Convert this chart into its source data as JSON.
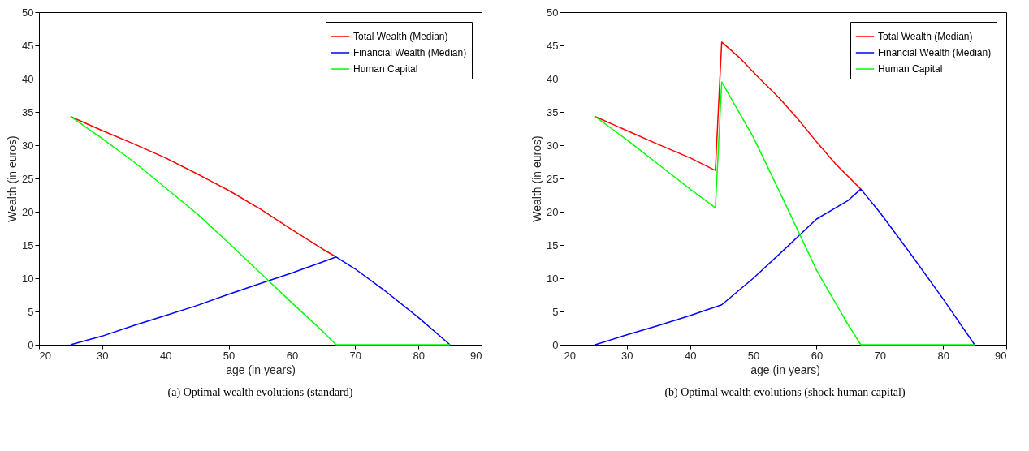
{
  "chart_data": [
    {
      "type": "line",
      "xlabel": "age (in years)",
      "ylabel": "Wealth (in euros)",
      "xlim": [
        20,
        90
      ],
      "xticks": [
        20,
        30,
        40,
        50,
        60,
        70,
        80,
        90
      ],
      "ylim": [
        0,
        50
      ],
      "yticks": [
        0,
        5,
        10,
        15,
        20,
        25,
        30,
        35,
        40,
        45,
        50
      ],
      "grid": false,
      "legend": "top right",
      "annotations": [
        "(a) Optimal wealth evolutions (standard)"
      ],
      "series": [
        {
          "name": "Total Wealth (Median)",
          "color": "#ff0000",
          "x": [
            25,
            30,
            35,
            40,
            45,
            50,
            55,
            60,
            65,
            67
          ],
          "values": [
            34.3,
            32.2,
            30.2,
            28.1,
            25.7,
            23.2,
            20.4,
            17.3,
            14.3,
            13.2
          ]
        },
        {
          "name": "Financial Wealth (Median)",
          "color": "#0000ff",
          "x": [
            25,
            30,
            35,
            40,
            45,
            50,
            55,
            60,
            65,
            67,
            70,
            75,
            80,
            85
          ],
          "values": [
            0,
            1.3,
            2.9,
            4.4,
            5.9,
            7.6,
            9.2,
            10.8,
            12.5,
            13.2,
            11.4,
            7.9,
            4.1,
            0
          ]
        },
        {
          "name": "Human Capital",
          "color": "#00ff00",
          "x": [
            25,
            30,
            35,
            40,
            45,
            50,
            55,
            60,
            65,
            67,
            85
          ],
          "values": [
            34.3,
            31.0,
            27.5,
            23.6,
            19.7,
            15.3,
            10.8,
            6.3,
            1.9,
            0,
            0
          ]
        }
      ]
    },
    {
      "type": "line",
      "xlabel": "age (in years)",
      "ylabel": "Wealth (in euros)",
      "xlim": [
        20,
        90
      ],
      "xticks": [
        20,
        30,
        40,
        50,
        60,
        70,
        80,
        90
      ],
      "ylim": [
        0,
        50
      ],
      "yticks": [
        0,
        5,
        10,
        15,
        20,
        25,
        30,
        35,
        40,
        45,
        50
      ],
      "grid": false,
      "legend": "top right",
      "annotations": [
        "(b) Optimal wealth evolutions (shock human capital)"
      ],
      "series": [
        {
          "name": "Total Wealth (Median)",
          "color": "#ff0000",
          "x": [
            25,
            30,
            35,
            40,
            44,
            45,
            48,
            51,
            54,
            57,
            60,
            63,
            67
          ],
          "values": [
            34.3,
            32.2,
            30.1,
            28.1,
            26.2,
            45.5,
            43.0,
            40.0,
            37.2,
            34.0,
            30.5,
            27.2,
            23.4
          ]
        },
        {
          "name": "Financial Wealth (Median)",
          "color": "#0000ff",
          "x": [
            25,
            30,
            35,
            40,
            45,
            50,
            55,
            60,
            65,
            67,
            70,
            75,
            80,
            85
          ],
          "values": [
            0,
            1.5,
            2.9,
            4.4,
            6.0,
            10.0,
            14.4,
            18.9,
            21.7,
            23.4,
            19.9,
            13.5,
            6.9,
            0
          ]
        },
        {
          "name": "Human Capital",
          "color": "#00ff00",
          "x": [
            25,
            30,
            35,
            40,
            44,
            45,
            50,
            55,
            60,
            65,
            67,
            85
          ],
          "values": [
            34.3,
            30.8,
            27.1,
            23.4,
            20.6,
            39.5,
            31.2,
            21.3,
            11.2,
            3.0,
            0,
            0
          ]
        }
      ]
    }
  ]
}
